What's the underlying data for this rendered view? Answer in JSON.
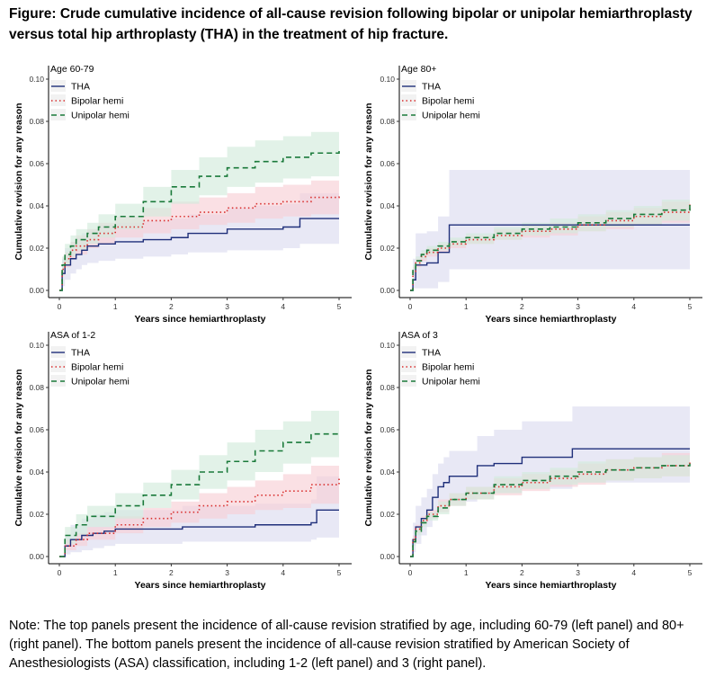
{
  "figure": {
    "title": "Figure: Crude cumulative incidence of all-cause revision following bipolar or unipolar hemiarthroplasty versus total hip arthroplasty (THA) in the treatment of hip fracture.",
    "note": "Note: The top panels present the incidence of all-cause revision stratified by age, including 60-79 (left panel) and 80+ (right panel).  The bottom panels present the incidence of all-cause revision stratified by American Society of Anesthesiologists (ASA) classification, including 1-2 (left panel) and 3 (right panel)."
  },
  "colors": {
    "THA": "#1f2f7a",
    "Bipolar hemi": "#d9302f",
    "Unipolar hemi": "#1a7a3a",
    "THA_band": "#dcdcf0",
    "Bipolar_band": "#f7d0d5",
    "Unipolar_band": "#d3ebdc"
  },
  "chart_data": [
    {
      "type": "line",
      "panel_label": "Age 60-79",
      "xlabel": "Years since hemiarthroplasty",
      "ylabel": "Cumulative revision for any reason",
      "xlim": [
        0,
        5
      ],
      "ylim": [
        0,
        0.1
      ],
      "xticks": [
        "0",
        "1",
        "2",
        "3",
        "4",
        "5"
      ],
      "yticks": [
        "0.00",
        "0.02",
        "0.04",
        "0.06",
        "0.08",
        "0.10"
      ],
      "legend_position": "top-left",
      "grid": false,
      "series": [
        {
          "name": "THA",
          "style": "solid",
          "x": [
            0,
            0.05,
            0.1,
            0.2,
            0.3,
            0.4,
            0.5,
            0.7,
            1.0,
            1.5,
            2.0,
            2.3,
            3.0,
            3.5,
            4.0,
            4.3,
            5.0
          ],
          "y": [
            0,
            0.008,
            0.012,
            0.015,
            0.017,
            0.019,
            0.021,
            0.022,
            0.023,
            0.024,
            0.025,
            0.027,
            0.029,
            0.029,
            0.03,
            0.034,
            0.034
          ],
          "lower": [
            0,
            0.002,
            0.005,
            0.008,
            0.01,
            0.012,
            0.013,
            0.014,
            0.015,
            0.016,
            0.017,
            0.018,
            0.019,
            0.019,
            0.02,
            0.022,
            0.022
          ],
          "upper": [
            0,
            0.015,
            0.02,
            0.023,
            0.025,
            0.027,
            0.029,
            0.031,
            0.032,
            0.033,
            0.034,
            0.036,
            0.039,
            0.04,
            0.041,
            0.046,
            0.046
          ]
        },
        {
          "name": "Bipolar hemi",
          "style": "dotted",
          "x": [
            0,
            0.05,
            0.1,
            0.2,
            0.3,
            0.5,
            0.7,
            1.0,
            1.5,
            2.0,
            2.5,
            3.0,
            3.5,
            4.0,
            4.5,
            5.0
          ],
          "y": [
            0,
            0.01,
            0.015,
            0.019,
            0.021,
            0.024,
            0.027,
            0.03,
            0.033,
            0.035,
            0.037,
            0.039,
            0.041,
            0.042,
            0.044,
            0.045
          ],
          "lower": [
            0,
            0.007,
            0.011,
            0.015,
            0.017,
            0.02,
            0.022,
            0.025,
            0.027,
            0.029,
            0.031,
            0.032,
            0.034,
            0.035,
            0.036,
            0.037
          ],
          "upper": [
            0,
            0.013,
            0.018,
            0.023,
            0.026,
            0.029,
            0.032,
            0.035,
            0.039,
            0.042,
            0.044,
            0.046,
            0.049,
            0.05,
            0.052,
            0.054
          ]
        },
        {
          "name": "Unipolar hemi",
          "style": "dashed",
          "x": [
            0,
            0.05,
            0.1,
            0.2,
            0.3,
            0.5,
            0.7,
            1.0,
            1.5,
            2.0,
            2.5,
            3.0,
            3.5,
            4.0,
            4.5,
            5.0
          ],
          "y": [
            0,
            0.012,
            0.017,
            0.021,
            0.024,
            0.027,
            0.03,
            0.035,
            0.042,
            0.049,
            0.054,
            0.058,
            0.061,
            0.063,
            0.065,
            0.066
          ],
          "lower": [
            0,
            0.008,
            0.012,
            0.016,
            0.019,
            0.022,
            0.025,
            0.029,
            0.035,
            0.041,
            0.045,
            0.049,
            0.051,
            0.053,
            0.054,
            0.055
          ],
          "upper": [
            0,
            0.016,
            0.022,
            0.026,
            0.029,
            0.032,
            0.036,
            0.041,
            0.049,
            0.057,
            0.063,
            0.068,
            0.071,
            0.073,
            0.075,
            0.077
          ]
        }
      ]
    },
    {
      "type": "line",
      "panel_label": "Age 80+",
      "xlabel": "Years since hemiarthroplasty",
      "ylabel": "Cumulative revision for any reason",
      "xlim": [
        0,
        5
      ],
      "ylim": [
        0,
        0.1
      ],
      "xticks": [
        "0",
        "1",
        "2",
        "3",
        "4",
        "5"
      ],
      "yticks": [
        "0.00",
        "0.02",
        "0.04",
        "0.06",
        "0.08",
        "0.10"
      ],
      "legend_position": "top-left",
      "grid": false,
      "series": [
        {
          "name": "THA",
          "style": "solid",
          "x": [
            0,
            0.05,
            0.1,
            0.3,
            0.5,
            0.7,
            5.0
          ],
          "y": [
            0,
            0.005,
            0.012,
            0.013,
            0.018,
            0.031,
            0.031
          ],
          "lower": [
            0,
            0.001,
            0.001,
            0.001,
            0.004,
            0.01,
            0.01
          ],
          "upper": [
            0,
            0.015,
            0.027,
            0.028,
            0.035,
            0.057,
            0.057
          ]
        },
        {
          "name": "Bipolar hemi",
          "style": "dotted",
          "x": [
            0,
            0.05,
            0.1,
            0.2,
            0.3,
            0.5,
            0.7,
            1.0,
            1.5,
            2.0,
            2.5,
            3.0,
            3.5,
            4.0,
            4.5,
            5.0
          ],
          "y": [
            0,
            0.009,
            0.013,
            0.016,
            0.018,
            0.02,
            0.022,
            0.024,
            0.026,
            0.028,
            0.029,
            0.031,
            0.033,
            0.035,
            0.037,
            0.041
          ],
          "lower": [
            0,
            0.007,
            0.011,
            0.014,
            0.016,
            0.018,
            0.02,
            0.022,
            0.024,
            0.025,
            0.026,
            0.028,
            0.029,
            0.031,
            0.032,
            0.034
          ],
          "upper": [
            0,
            0.011,
            0.015,
            0.018,
            0.02,
            0.022,
            0.024,
            0.026,
            0.029,
            0.031,
            0.032,
            0.035,
            0.037,
            0.039,
            0.042,
            0.05
          ]
        },
        {
          "name": "Unipolar hemi",
          "style": "dashed",
          "x": [
            0,
            0.05,
            0.1,
            0.2,
            0.3,
            0.5,
            0.7,
            1.0,
            1.5,
            2.0,
            2.5,
            3.0,
            3.5,
            4.0,
            4.5,
            5.0
          ],
          "y": [
            0,
            0.01,
            0.014,
            0.017,
            0.019,
            0.021,
            0.023,
            0.025,
            0.027,
            0.029,
            0.03,
            0.032,
            0.034,
            0.036,
            0.038,
            0.042
          ],
          "lower": [
            0,
            0.008,
            0.012,
            0.015,
            0.017,
            0.019,
            0.021,
            0.022,
            0.024,
            0.026,
            0.027,
            0.028,
            0.03,
            0.031,
            0.033,
            0.035
          ],
          "upper": [
            0,
            0.012,
            0.016,
            0.019,
            0.021,
            0.023,
            0.025,
            0.027,
            0.03,
            0.032,
            0.034,
            0.036,
            0.038,
            0.04,
            0.043,
            0.05
          ]
        }
      ]
    },
    {
      "type": "line",
      "panel_label": "ASA of 1-2",
      "xlabel": "Years since hemiarthroplasty",
      "ylabel": "Cumulative revision for any reason",
      "xlim": [
        0,
        5
      ],
      "ylim": [
        0,
        0.1
      ],
      "xticks": [
        "0",
        "1",
        "2",
        "3",
        "4",
        "5"
      ],
      "yticks": [
        "0.00",
        "0.02",
        "0.04",
        "0.06",
        "0.08",
        "0.10"
      ],
      "legend_position": "top-left",
      "grid": false,
      "series": [
        {
          "name": "THA",
          "style": "solid",
          "x": [
            0,
            0.1,
            0.2,
            0.4,
            0.6,
            0.8,
            1.0,
            2.0,
            2.2,
            3.0,
            3.5,
            4.0,
            4.5,
            4.6,
            5.0
          ],
          "y": [
            0,
            0.005,
            0.008,
            0.01,
            0.011,
            0.012,
            0.013,
            0.013,
            0.014,
            0.014,
            0.015,
            0.015,
            0.016,
            0.022,
            0.022
          ],
          "lower": [
            0,
            0.001,
            0.002,
            0.003,
            0.004,
            0.005,
            0.006,
            0.006,
            0.007,
            0.007,
            0.007,
            0.007,
            0.008,
            0.009,
            0.009
          ],
          "upper": [
            0,
            0.01,
            0.015,
            0.018,
            0.02,
            0.021,
            0.022,
            0.022,
            0.024,
            0.024,
            0.025,
            0.025,
            0.027,
            0.038,
            0.038
          ]
        },
        {
          "name": "Bipolar hemi",
          "style": "dotted",
          "x": [
            0,
            0.1,
            0.3,
            0.5,
            1.0,
            1.5,
            2.0,
            2.5,
            3.0,
            3.5,
            4.0,
            4.5,
            5.0
          ],
          "y": [
            0,
            0.005,
            0.008,
            0.011,
            0.015,
            0.018,
            0.021,
            0.024,
            0.026,
            0.029,
            0.031,
            0.034,
            0.038
          ],
          "lower": [
            0,
            0.003,
            0.005,
            0.008,
            0.011,
            0.014,
            0.016,
            0.018,
            0.02,
            0.022,
            0.023,
            0.025,
            0.028
          ],
          "upper": [
            0,
            0.008,
            0.011,
            0.014,
            0.019,
            0.023,
            0.026,
            0.03,
            0.033,
            0.036,
            0.039,
            0.043,
            0.048
          ]
        },
        {
          "name": "Unipolar hemi",
          "style": "dashed",
          "x": [
            0,
            0.1,
            0.3,
            0.5,
            1.0,
            1.5,
            2.0,
            2.5,
            3.0,
            3.5,
            4.0,
            4.5,
            5.0
          ],
          "y": [
            0,
            0.01,
            0.015,
            0.019,
            0.024,
            0.029,
            0.034,
            0.04,
            0.045,
            0.05,
            0.054,
            0.058,
            0.059
          ],
          "lower": [
            0,
            0.006,
            0.01,
            0.014,
            0.018,
            0.023,
            0.027,
            0.032,
            0.036,
            0.04,
            0.044,
            0.047,
            0.048
          ],
          "upper": [
            0,
            0.014,
            0.02,
            0.024,
            0.03,
            0.035,
            0.041,
            0.048,
            0.054,
            0.06,
            0.064,
            0.069,
            0.07
          ]
        }
      ]
    },
    {
      "type": "line",
      "panel_label": "ASA of 3",
      "xlabel": "Years since hemiarthroplasty",
      "ylabel": "Cumulative revision for any reason",
      "xlim": [
        0,
        5
      ],
      "ylim": [
        0,
        0.1
      ],
      "xticks": [
        "0",
        "1",
        "2",
        "3",
        "4",
        "5"
      ],
      "yticks": [
        "0.00",
        "0.02",
        "0.04",
        "0.06",
        "0.08",
        "0.10"
      ],
      "legend_position": "top-left",
      "grid": false,
      "series": [
        {
          "name": "THA",
          "style": "solid",
          "x": [
            0,
            0.05,
            0.1,
            0.2,
            0.3,
            0.4,
            0.5,
            0.6,
            0.7,
            1.2,
            1.5,
            2.0,
            2.9,
            5.0
          ],
          "y": [
            0,
            0.008,
            0.014,
            0.018,
            0.022,
            0.028,
            0.033,
            0.035,
            0.038,
            0.043,
            0.044,
            0.047,
            0.051,
            0.051
          ],
          "lower": [
            0,
            0.002,
            0.006,
            0.01,
            0.014,
            0.018,
            0.022,
            0.024,
            0.026,
            0.029,
            0.03,
            0.032,
            0.035,
            0.035
          ],
          "upper": [
            0,
            0.016,
            0.024,
            0.028,
            0.032,
            0.039,
            0.044,
            0.047,
            0.05,
            0.057,
            0.06,
            0.064,
            0.071,
            0.071
          ]
        },
        {
          "name": "Bipolar hemi",
          "style": "dotted",
          "x": [
            0,
            0.05,
            0.1,
            0.2,
            0.3,
            0.5,
            0.7,
            1.0,
            1.5,
            2.0,
            2.5,
            3.0,
            3.5,
            4.0,
            4.5,
            5.0
          ],
          "y": [
            0,
            0.008,
            0.013,
            0.017,
            0.02,
            0.024,
            0.027,
            0.03,
            0.033,
            0.035,
            0.037,
            0.039,
            0.041,
            0.042,
            0.043,
            0.045
          ],
          "lower": [
            0,
            0.006,
            0.011,
            0.015,
            0.018,
            0.021,
            0.024,
            0.027,
            0.029,
            0.031,
            0.033,
            0.034,
            0.036,
            0.037,
            0.038,
            0.039
          ],
          "upper": [
            0,
            0.01,
            0.015,
            0.019,
            0.022,
            0.027,
            0.03,
            0.033,
            0.037,
            0.039,
            0.041,
            0.044,
            0.046,
            0.047,
            0.049,
            0.051
          ]
        },
        {
          "name": "Unipolar hemi",
          "style": "dashed",
          "x": [
            0,
            0.05,
            0.1,
            0.2,
            0.3,
            0.5,
            0.7,
            1.0,
            1.5,
            2.0,
            2.5,
            3.0,
            3.5,
            4.0,
            4.5,
            5.0
          ],
          "y": [
            0,
            0.007,
            0.012,
            0.016,
            0.019,
            0.023,
            0.027,
            0.03,
            0.034,
            0.036,
            0.038,
            0.04,
            0.041,
            0.042,
            0.043,
            0.044
          ],
          "lower": [
            0,
            0.005,
            0.01,
            0.014,
            0.017,
            0.02,
            0.024,
            0.027,
            0.03,
            0.032,
            0.034,
            0.035,
            0.036,
            0.037,
            0.038,
            0.039
          ],
          "upper": [
            0,
            0.009,
            0.014,
            0.018,
            0.021,
            0.026,
            0.03,
            0.033,
            0.038,
            0.04,
            0.042,
            0.045,
            0.046,
            0.047,
            0.048,
            0.05
          ]
        }
      ]
    }
  ]
}
